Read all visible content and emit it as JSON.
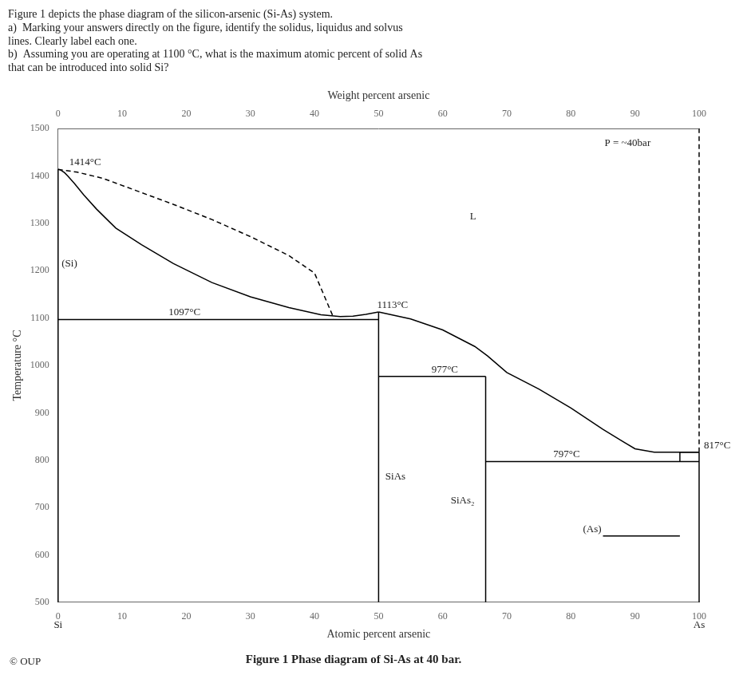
{
  "chart_data": {
    "type": "line",
    "title": "Figure 1 Phase diagram of Si-As at 40 bar.",
    "subtitle": [
      "Figure 1 depicts the phase diagram of the silicon-arsenic (Si-As) system.",
      "a)  Marking your answers directly on the figure, identify the solidus, liquidus and solvus",
      "lines. Clearly label each one.",
      "b)  Assuming you are operating at 1100 °C, what is the maximum atomic percent of solid As",
      "that can be introduced into solid Si?"
    ],
    "xlabel": "Atomic percent arsenic",
    "ylabel": "Temperature °C",
    "x2label": "Weight percent arsenic",
    "xlim": [
      0,
      100
    ],
    "ylim": [
      500,
      1500
    ],
    "x2lim": [
      0,
      100
    ],
    "xticks": [
      0,
      10,
      20,
      30,
      40,
      50,
      60,
      70,
      80,
      90,
      100
    ],
    "x2ticks": [
      0,
      10,
      20,
      30,
      40,
      50,
      60,
      70,
      80,
      90,
      100
    ],
    "yticks": [
      500,
      600,
      700,
      800,
      900,
      1000,
      1100,
      1200,
      1300,
      1400,
      1500
    ],
    "grid": false,
    "color": "black",
    "series": [
      {
        "x": [
          0,
          0
        ],
        "values": [
          500,
          1414
        ]
      },
      {
        "x": [
          0,
          0.3,
          0.6,
          1.0,
          1.5,
          2.5,
          4,
          6,
          9,
          13,
          18,
          24,
          30,
          36,
          41,
          44,
          46,
          48,
          50
        ],
        "values": [
          1414,
          1413,
          1411,
          1407,
          1400,
          1385,
          1360,
          1330,
          1290,
          1255,
          1215,
          1175,
          1145,
          1122,
          1107,
          1103,
          1104,
          1108,
          1113
        ]
      },
      {
        "x": [
          0,
          3,
          7,
          12,
          18,
          24,
          30,
          36,
          40,
          43
        ],
        "values": [
          1414,
          1408,
          1395,
          1370,
          1340,
          1308,
          1272,
          1232,
          1195,
          1100
        ],
        "line_style": "dashed"
      },
      {
        "x": [
          0,
          50
        ],
        "values": [
          1097,
          1097
        ]
      },
      {
        "x": [
          50,
          50
        ],
        "values": [
          500,
          1113
        ]
      },
      {
        "x": [
          50,
          55,
          60,
          65,
          67,
          70,
          75,
          80,
          85,
          88,
          90,
          93,
          96,
          98,
          100
        ],
        "values": [
          1113,
          1098,
          1075,
          1040,
          1020,
          985,
          950,
          910,
          865,
          840,
          824,
          817,
          817,
          817,
          817
        ]
      },
      {
        "x": [
          50,
          66.7
        ],
        "values": [
          977,
          977
        ]
      },
      {
        "x": [
          66.7,
          66.7
        ],
        "values": [
          500,
          977
        ]
      },
      {
        "x": [
          66.7,
          100
        ],
        "values": [
          797,
          797
        ]
      },
      {
        "x": [
          100,
          100
        ],
        "values": [
          500,
          817
        ]
      },
      {
        "x": [
          97,
          97
        ],
        "values": [
          797,
          817
        ]
      },
      {
        "x": [
          97,
          100
        ],
        "values": [
          817,
          817
        ]
      },
      {
        "x": [
          100,
          100
        ],
        "values": [
          817,
          1500
        ],
        "line_style": "dashed"
      },
      {
        "x": [
          85,
          97
        ],
        "values": [
          640,
          640
        ]
      }
    ],
    "annotations": [
      {
        "text": "1414°C",
        "x": 1.5,
        "y": 1414
      },
      {
        "text": "1097°C",
        "x": 17,
        "y": 1097
      },
      {
        "text": "1113°C",
        "x": 49.5,
        "y": 1113
      },
      {
        "text": "977°C",
        "x": 58,
        "y": 977
      },
      {
        "text": "797°C",
        "x": 77,
        "y": 797
      },
      {
        "text": "817°C",
        "x": 100.5,
        "y": 817
      },
      {
        "text": "(Si)",
        "x": 0.3,
        "y": 1200
      },
      {
        "text": "L",
        "x": 64,
        "y": 1300
      },
      {
        "text": "P = ~40bar",
        "x": 85,
        "y": 1455
      },
      {
        "text": "SiAs",
        "x": 50.8,
        "y": 750
      },
      {
        "text": "SiAs₂",
        "x": 65.2,
        "y": 700,
        "align": "right"
      },
      {
        "text": "(As)",
        "x": 85,
        "y": 640,
        "align": "right"
      },
      {
        "text": "Si",
        "x": 0
      },
      {
        "text": "As",
        "x": 100
      },
      {
        "text": "© OUP"
      }
    ]
  }
}
